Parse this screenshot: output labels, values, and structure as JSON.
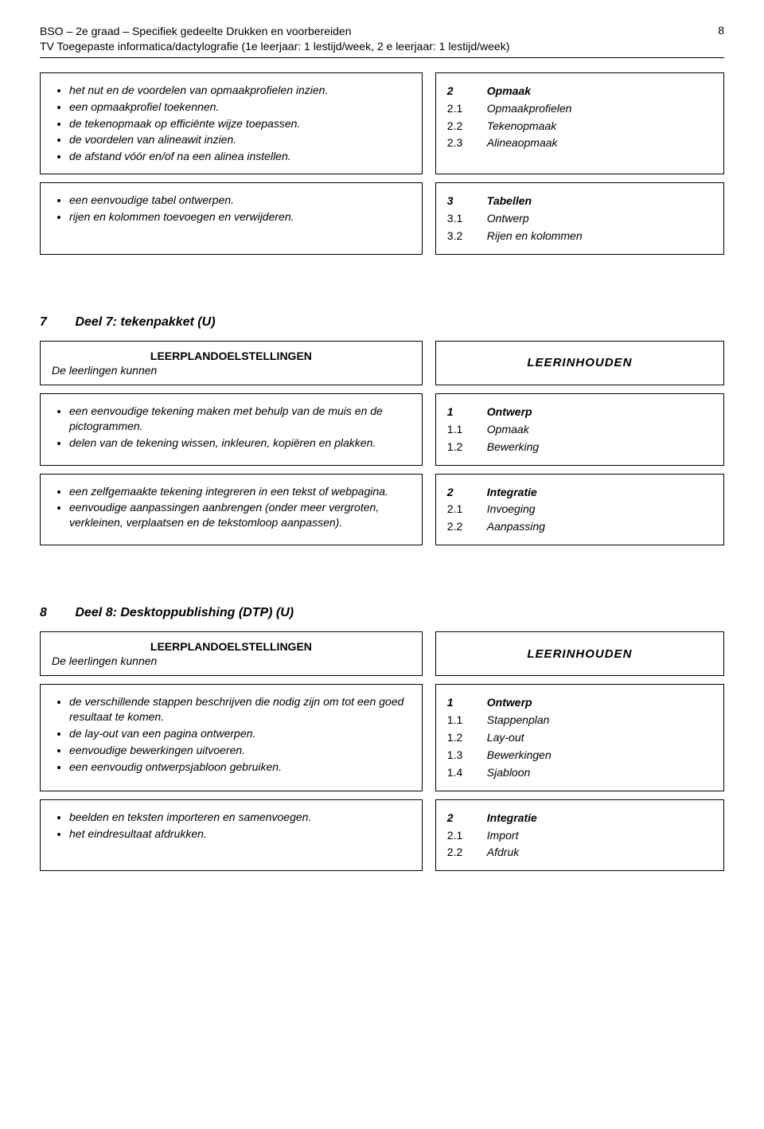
{
  "header": {
    "line1_left": "BSO – 2e graad – Specifiek gedeelte Drukken en voorbereiden",
    "page_number": "8",
    "line2": "TV Toegepaste informatica/dactylografie (1e leerjaar: 1 lestijd/week, 2 e leerjaar: 1 lestijd/week)"
  },
  "block1": {
    "left_items": [
      "het nut en de voordelen van opmaakprofielen inzien.",
      "een opmaakprofiel toekennen.",
      "de tekenopmaak op efficiënte wijze toepassen.",
      "de voordelen van alineawit inzien.",
      "de afstand vóór en/of na een alinea instellen."
    ],
    "right_items": [
      {
        "num": "2",
        "label": "Opmaak",
        "bold": true
      },
      {
        "num": "2.1",
        "label": "Opmaakprofielen",
        "bold": false
      },
      {
        "num": "2.2",
        "label": "Tekenopmaak",
        "bold": false
      },
      {
        "num": "2.3",
        "label": "Alineaopmaak",
        "bold": false
      }
    ]
  },
  "block2": {
    "left_items": [
      "een eenvoudige tabel ontwerpen.",
      "rijen en kolommen toevoegen en verwijderen."
    ],
    "right_items": [
      {
        "num": "3",
        "label": "Tabellen",
        "bold": true
      },
      {
        "num": "3.1",
        "label": "Ontwerp",
        "bold": false
      },
      {
        "num": "3.2",
        "label": "Rijen en kolommen",
        "bold": false
      }
    ]
  },
  "section7": {
    "number": "7",
    "title": "Deel 7: tekenpakket (U)",
    "header_left_title": "LEERPLANDOELSTELLINGEN",
    "header_left_sub": "De leerlingen kunnen",
    "header_right_title": "LEERINHOUDEN",
    "rowA": {
      "left_items": [
        "een eenvoudige tekening maken met behulp van de muis en de pictogrammen.",
        "delen van de tekening wissen, inkleuren, kopiëren en plakken."
      ],
      "right_items": [
        {
          "num": "1",
          "label": "Ontwerp",
          "bold": true
        },
        {
          "num": "1.1",
          "label": "Opmaak",
          "bold": false
        },
        {
          "num": "1.2",
          "label": "Bewerking",
          "bold": false
        }
      ]
    },
    "rowB": {
      "left_items": [
        "een zelfgemaakte tekening integreren in een tekst of webpagina.",
        "eenvoudige aanpassingen aanbrengen (onder meer vergroten, verkleinen, verplaatsen en de tekstomloop aanpassen)."
      ],
      "right_items": [
        {
          "num": "2",
          "label": "Integratie",
          "bold": true
        },
        {
          "num": "2.1",
          "label": "Invoeging",
          "bold": false
        },
        {
          "num": "2.2",
          "label": "Aanpassing",
          "bold": false
        }
      ]
    }
  },
  "section8": {
    "number": "8",
    "title": "Deel 8: Desktoppublishing (DTP) (U)",
    "header_left_title": "LEERPLANDOELSTELLINGEN",
    "header_left_sub": "De leerlingen kunnen",
    "header_right_title": "LEERINHOUDEN",
    "rowA": {
      "left_items": [
        "de verschillende stappen beschrijven die nodig zijn om tot een goed resultaat te komen.",
        "de lay-out van een pagina ontwerpen.",
        "eenvoudige bewerkingen uitvoeren.",
        "een eenvoudig ontwerpsjabloon gebruiken."
      ],
      "right_items": [
        {
          "num": "1",
          "label": "Ontwerp",
          "bold": true
        },
        {
          "num": "1.1",
          "label": "Stappenplan",
          "bold": false
        },
        {
          "num": "1.2",
          "label": "Lay-out",
          "bold": false
        },
        {
          "num": "1.3",
          "label": "Bewerkingen",
          "bold": false
        },
        {
          "num": "1.4",
          "label": "Sjabloon",
          "bold": false
        }
      ]
    },
    "rowB": {
      "left_items": [
        "beelden en teksten importeren en samenvoegen.",
        "het eindresultaat afdrukken."
      ],
      "right_items": [
        {
          "num": "2",
          "label": "Integratie",
          "bold": true
        },
        {
          "num": "2.1",
          "label": "Import",
          "bold": false
        },
        {
          "num": "2.2",
          "label": "Afdruk",
          "bold": false
        }
      ]
    }
  }
}
